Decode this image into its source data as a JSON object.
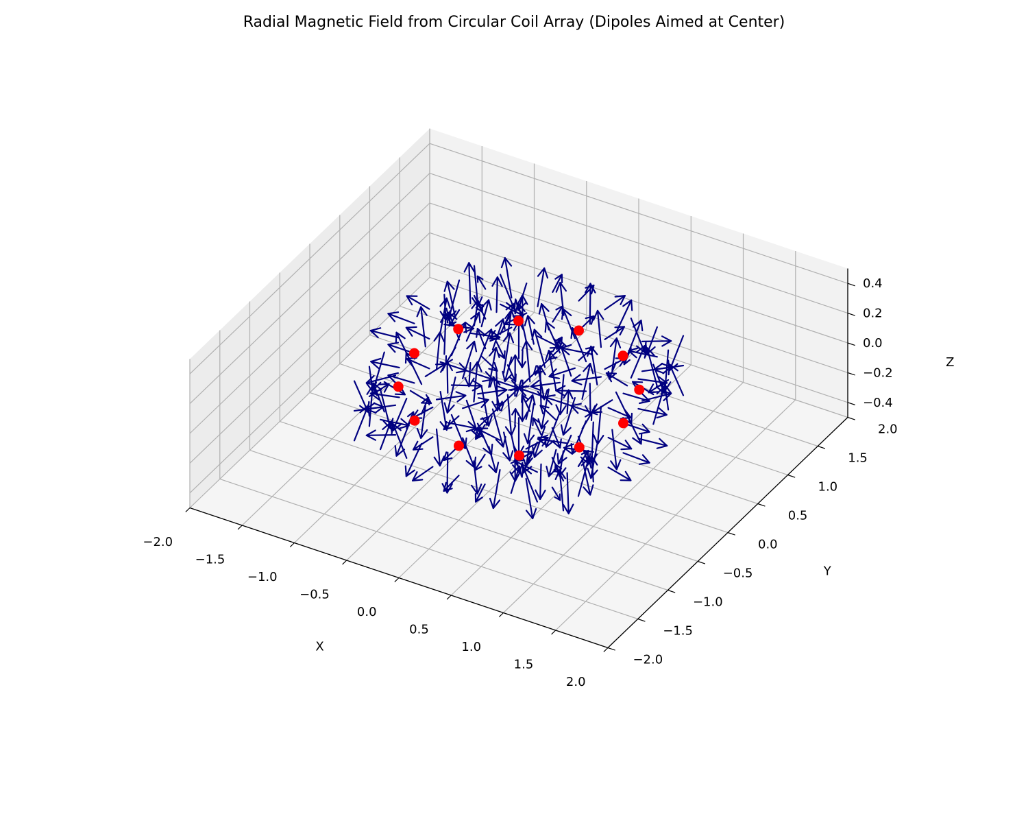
{
  "title": "Radial Magnetic Field from Circular Coil Array (Dipoles Aimed at Center)",
  "chart_data": {
    "type": "quiver3d",
    "xlabel": "X",
    "ylabel": "Y",
    "zlabel": "Z",
    "xlim": [
      -2.0,
      2.0
    ],
    "ylim": [
      -2.0,
      2.0
    ],
    "zlim": [
      -0.5,
      0.5
    ],
    "xticks": [
      "−2.0",
      "−1.5",
      "−1.0",
      "−0.5",
      "0.0",
      "0.5",
      "1.0",
      "1.5",
      "2.0"
    ],
    "yticks": [
      "−2.0",
      "−1.5",
      "−1.0",
      "−0.5",
      "0.0",
      "0.5",
      "1.0",
      "1.5",
      "2.0"
    ],
    "zticks": [
      "−0.4",
      "−0.2",
      "0.0",
      "0.2",
      "0.4"
    ],
    "grid": true,
    "colors": {
      "arrows": "#000080",
      "coils": "#ff0000",
      "pane": "#f2f2f2",
      "grid": "#b0b0b0"
    },
    "coils": {
      "radius": 1.0,
      "count": 12,
      "z": 0.0,
      "angles_deg": [
        0,
        30,
        60,
        90,
        120,
        150,
        180,
        210,
        240,
        270,
        300,
        330
      ]
    },
    "field_grid": {
      "x_range": [
        -1.0,
        1.0
      ],
      "y_range": [
        -1.0,
        1.0
      ],
      "z_range": [
        -0.2,
        0.2
      ],
      "step_xy": 0.25,
      "z_levels": [
        -0.2,
        0.0,
        0.2
      ],
      "arrow_length": 0.25
    }
  }
}
